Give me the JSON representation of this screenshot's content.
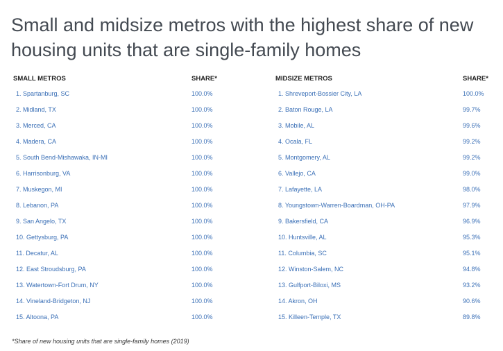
{
  "title": "Small and midsize metros with the highest share of new housing units that are single-family homes",
  "footnote": "*Share of new housing units that are single-family homes (2019)",
  "chart_data": [
    {
      "type": "table",
      "columns": [
        "SMALL METROS",
        "SHARE*"
      ],
      "rows": [
        [
          "1. Spartanburg, SC",
          "100.0%"
        ],
        [
          "2. Midland, TX",
          "100.0%"
        ],
        [
          "3. Merced, CA",
          "100.0%"
        ],
        [
          "4. Madera, CA",
          "100.0%"
        ],
        [
          "5. South Bend-Mishawaka, IN-MI",
          "100.0%"
        ],
        [
          "6. Harrisonburg, VA",
          "100.0%"
        ],
        [
          "7. Muskegon, MI",
          "100.0%"
        ],
        [
          "8. Lebanon, PA",
          "100.0%"
        ],
        [
          "9. San Angelo, TX",
          "100.0%"
        ],
        [
          "10. Gettysburg, PA",
          "100.0%"
        ],
        [
          "11. Decatur, AL",
          "100.0%"
        ],
        [
          "12. East Stroudsburg, PA",
          "100.0%"
        ],
        [
          "13. Watertown-Fort Drum, NY",
          "100.0%"
        ],
        [
          "14. Vineland-Bridgeton, NJ",
          "100.0%"
        ],
        [
          "15. Altoona, PA",
          "100.0%"
        ]
      ]
    },
    {
      "type": "table",
      "columns": [
        "MIDSIZE METROS",
        "SHARE*"
      ],
      "rows": [
        [
          "1. Shreveport-Bossier City, LA",
          "100.0%"
        ],
        [
          "2. Baton Rouge, LA",
          "99.7%"
        ],
        [
          "3. Mobile, AL",
          "99.6%"
        ],
        [
          "4. Ocala, FL",
          "99.2%"
        ],
        [
          "5. Montgomery, AL",
          "99.2%"
        ],
        [
          "6. Vallejo, CA",
          "99.0%"
        ],
        [
          "7. Lafayette, LA",
          "98.0%"
        ],
        [
          "8. Youngstown-Warren-Boardman, OH-PA",
          "97.9%"
        ],
        [
          "9. Bakersfield, CA",
          "96.9%"
        ],
        [
          "10. Huntsville, AL",
          "95.3%"
        ],
        [
          "11. Columbia, SC",
          "95.1%"
        ],
        [
          "12. Winston-Salem, NC",
          "94.8%"
        ],
        [
          "13. Gulfport-Biloxi, MS",
          "93.2%"
        ],
        [
          "14. Akron, OH",
          "90.6%"
        ],
        [
          "15. Killeen-Temple, TX",
          "89.8%"
        ]
      ]
    }
  ]
}
